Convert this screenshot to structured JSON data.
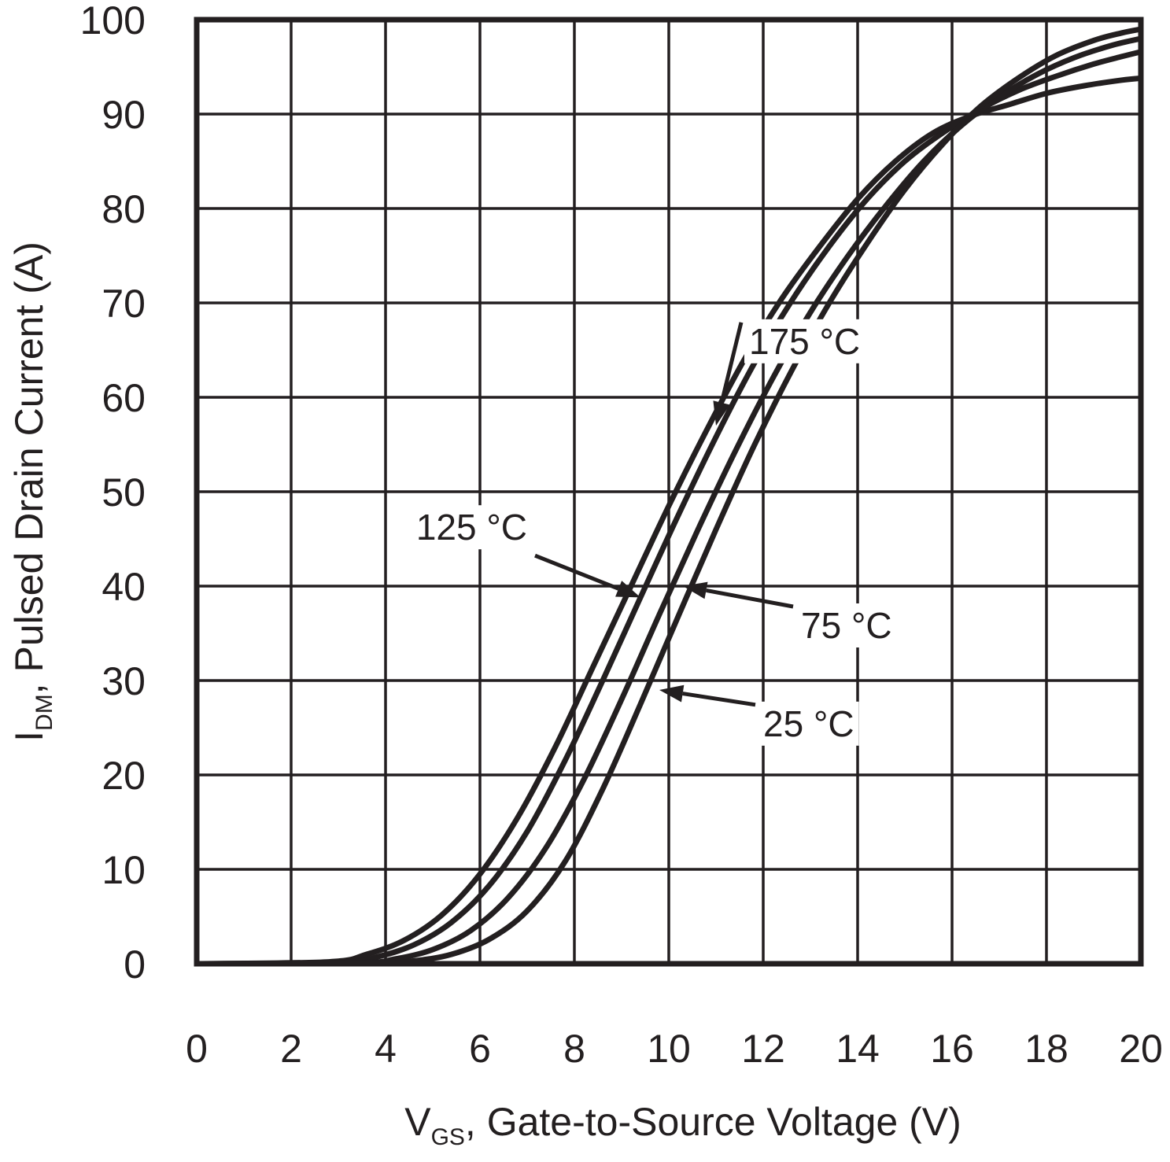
{
  "chart_data": {
    "type": "line",
    "title": "",
    "xlabel": {
      "main": "V",
      "sub": "GS",
      "rest": ", Gate-to-Source Voltage (V)"
    },
    "ylabel": {
      "main": "I",
      "sub": "DM",
      "rest": ", Pulsed Drain Current (A)"
    },
    "xlim": [
      0,
      20
    ],
    "ylim": [
      0,
      100
    ],
    "grid": true,
    "xticks": [
      0,
      2,
      4,
      6,
      8,
      10,
      12,
      14,
      16,
      18,
      20
    ],
    "yticks": [
      0,
      10,
      20,
      30,
      40,
      50,
      60,
      70,
      80,
      90,
      100
    ],
    "series": [
      {
        "name": "175 °C",
        "x": [
          0,
          2.8,
          3.6,
          4.4,
          5.2,
          6.0,
          6.8,
          7.6,
          8.4,
          9.2,
          10.0,
          10.8,
          11.6,
          12.4,
          13.2,
          14.0,
          14.8,
          15.6,
          16.4,
          17.2,
          18.0,
          18.8,
          19.6,
          20
        ],
        "y": [
          0,
          0.2,
          1.0,
          2.5,
          5.2,
          9.5,
          15.5,
          23.0,
          31.5,
          40.0,
          48.5,
          56.5,
          64.0,
          70.5,
          76.0,
          81.0,
          85.0,
          88.0,
          89.8,
          91.0,
          92.2,
          93.0,
          93.6,
          93.8
        ]
      },
      {
        "name": "125 °C",
        "x": [
          0,
          3.0,
          3.8,
          4.6,
          5.4,
          6.2,
          7.0,
          7.8,
          8.6,
          9.4,
          10.2,
          11.0,
          11.8,
          12.6,
          13.4,
          14.2,
          15.0,
          15.8,
          16.6,
          17.4,
          18.2,
          19.0,
          19.6,
          20
        ],
        "y": [
          0,
          0.1,
          0.7,
          2.0,
          4.4,
          8.3,
          14.0,
          21.5,
          30.0,
          38.8,
          47.5,
          55.8,
          63.5,
          70.2,
          76.0,
          81.0,
          85.0,
          88.0,
          90.5,
          92.5,
          94.0,
          95.3,
          96.1,
          96.6
        ]
      },
      {
        "name": "75 °C",
        "x": [
          0,
          3.4,
          4.2,
          5.0,
          5.8,
          6.6,
          7.4,
          8.2,
          9.0,
          9.8,
          10.6,
          11.4,
          12.2,
          13.0,
          13.8,
          14.6,
          15.4,
          16.2,
          17.0,
          17.8,
          18.6,
          19.4,
          20
        ],
        "y": [
          0,
          0.1,
          0.5,
          1.5,
          3.5,
          7.0,
          12.3,
          19.5,
          28.0,
          37.0,
          45.8,
          54.2,
          62.0,
          69.0,
          75.0,
          80.3,
          85.0,
          88.8,
          91.8,
          94.2,
          96.0,
          97.3,
          98.0
        ]
      },
      {
        "name": "25 °C",
        "x": [
          0,
          3.8,
          4.6,
          5.4,
          6.2,
          7.0,
          7.8,
          8.6,
          9.4,
          10.2,
          11.0,
          11.8,
          12.6,
          13.4,
          14.2,
          15.0,
          15.8,
          16.6,
          17.4,
          18.2,
          19.0,
          19.6,
          20
        ],
        "y": [
          0,
          0.05,
          0.3,
          1.0,
          2.6,
          5.6,
          10.8,
          18.5,
          27.5,
          36.8,
          46.0,
          54.8,
          62.8,
          70.0,
          76.3,
          82.0,
          86.8,
          90.8,
          93.8,
          96.2,
          97.8,
          98.6,
          99.0
        ]
      }
    ],
    "annotations": [
      {
        "text": "175 °C",
        "label_at": [
          11.7,
          64.6
        ],
        "points_to": [
          11.0,
          57.0
        ]
      },
      {
        "text": "125 °C",
        "label_at": [
          7.0,
          44.9
        ],
        "points_to": [
          9.4,
          38.8
        ]
      },
      {
        "text": "75 °C",
        "label_at": [
          12.8,
          34.5
        ],
        "points_to": [
          10.3,
          40.0
        ]
      },
      {
        "text": "25 °C",
        "label_at": [
          12.0,
          24.1
        ],
        "points_to": [
          9.8,
          29.0
        ]
      }
    ]
  }
}
